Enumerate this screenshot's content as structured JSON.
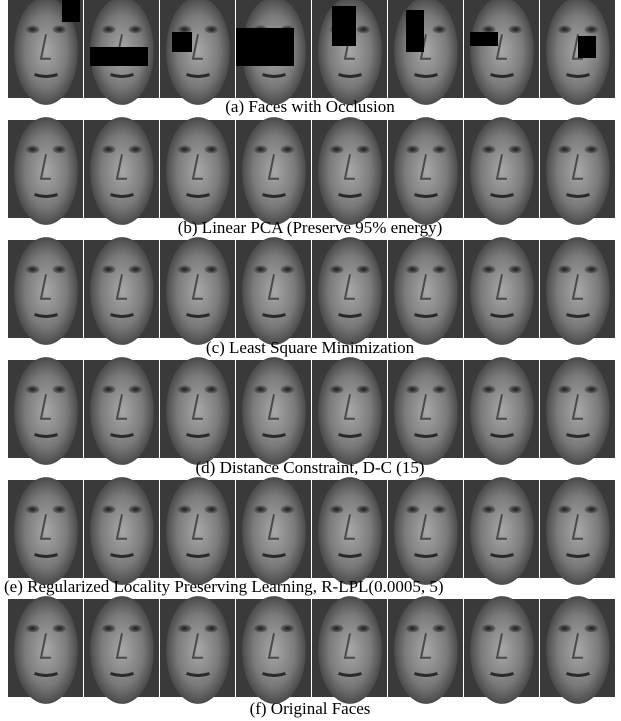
{
  "figure": {
    "captions": [
      "(a) Faces with Occlusion",
      "(b) Linear PCA (Preserve 95% energy)",
      "(c) Least Square Minimization",
      "(d) Distance Constraint, D-C (15)",
      "(e) Regularized Locality Preserving Learning, R-LPL(0.0005, 5)",
      "(f) Original Faces"
    ]
  }
}
